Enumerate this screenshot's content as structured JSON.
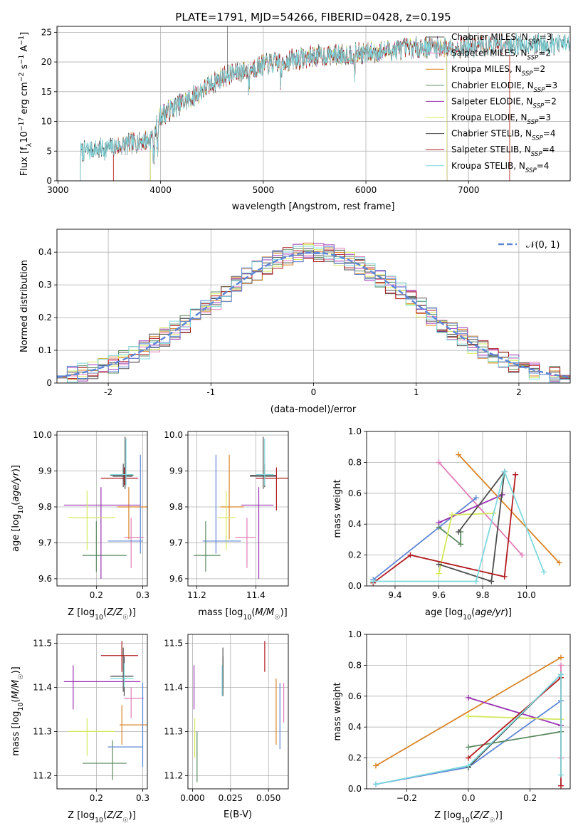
{
  "title": "PLATE=1791, MJD=54266, FIBERID=0428, z=0.195",
  "colors": {
    "Chabrier MILES": "#555555",
    "Salpeter MILES": "#e07fb6",
    "Kroupa MILES": "#d98426",
    "Chabrier ELODIE": "#5c8a60",
    "Salpeter ELODIE": "#9a34b0",
    "Kroupa ELODIE": "#d4e85a",
    "Chabrier STELIB": "#4d4d4d",
    "Salpeter STELIB": "#b01b20",
    "Kroupa STELIB": "#7fd8dd",
    "blue": "#5f86d4",
    "grid": "#b0b0b0"
  },
  "chart_data": [
    {
      "id": "spectrum",
      "type": "line",
      "xlabel": "wavelength [Angstrom, rest frame]",
      "ylabel": "Flux [f_λ 10^-17 erg cm^-2 s^-1 A^-1]",
      "xlim": [
        2990,
        7990
      ],
      "ylim": [
        0,
        26
      ],
      "xticks": [
        3000,
        4000,
        5000,
        6000,
        7000
      ],
      "yticks": [
        0,
        5,
        10,
        15,
        20,
        25
      ],
      "legend_position": "top-right",
      "series": [
        {
          "name": "Chabrier MILES",
          "label": "Chabrier MILES, N_SSP=3",
          "start": 3220,
          "end": 7990
        },
        {
          "name": "Salpeter MILES",
          "label": "Salpeter MILES, N_SSP=2",
          "start": 3540,
          "end": 7400
        },
        {
          "name": "Kroupa MILES",
          "label": "Kroupa MILES, N_SSP=2",
          "start": 3540,
          "end": 7400
        },
        {
          "name": "Chabrier ELODIE",
          "label": "Chabrier ELODIE, N_SSP=3",
          "start": 3900,
          "end": 6790
        },
        {
          "name": "Salpeter ELODIE",
          "label": "Salpeter ELODIE, N_SSP=2",
          "start": 3900,
          "end": 6790
        },
        {
          "name": "Kroupa ELODIE",
          "label": "Kroupa ELODIE, N_SSP=3",
          "start": 3900,
          "end": 6790
        },
        {
          "name": "Chabrier STELIB",
          "label": "Chabrier STELIB, N_SSP=4",
          "start": 3220,
          "end": 7990
        },
        {
          "name": "Salpeter STELIB",
          "label": "Salpeter STELIB, N_SSP=4",
          "start": 3540,
          "end": 7400
        },
        {
          "name": "Kroupa STELIB",
          "label": "Kroupa STELIB, N_SSP=4",
          "start": 3220,
          "end": 7990
        }
      ],
      "continuum": {
        "x": [
          3220,
          3500,
          3900,
          4000,
          4300,
          4600,
          5000,
          5500,
          6000,
          6500,
          7000,
          7500,
          7990
        ],
        "y": [
          5,
          5.5,
          7,
          11,
          14,
          17.5,
          19.5,
          21,
          21.5,
          22.5,
          22.5,
          23,
          23
        ]
      }
    },
    {
      "id": "residuals",
      "type": "bar",
      "xlabel": "(data-model)/error",
      "ylabel": "Normed distribution",
      "xlim": [
        -2.5,
        2.5
      ],
      "ylim": [
        0,
        0.47
      ],
      "xticks": [
        -2,
        -1,
        0,
        1,
        2
      ],
      "yticks": [
        0.0,
        0.1,
        0.2,
        0.3,
        0.4
      ],
      "reference": {
        "name": "N(0,1)",
        "label": "𝒩(0, 1)",
        "mean": 0,
        "sigma": 1
      },
      "bin_width": 0.1,
      "series_names": [
        "Chabrier MILES",
        "Salpeter MILES",
        "Kroupa MILES",
        "Chabrier ELODIE",
        "Salpeter ELODIE",
        "Kroupa ELODIE",
        "Chabrier STELIB",
        "Salpeter STELIB",
        "Kroupa STELIB",
        "blue"
      ]
    },
    {
      "id": "age_vs_Z",
      "type": "scatter",
      "xlabel": "Z [log10(Z/Z☉)]",
      "ylabel": "age [log10(age/yr)]",
      "xlim": [
        0.115,
        0.31
      ],
      "ylim": [
        9.58,
        10.01
      ],
      "xticks": [
        0.2,
        0.3
      ],
      "xticklabels": [
        "0.2",
        "0.3"
      ],
      "yticks": [
        9.6,
        9.7,
        9.8,
        9.9,
        10.0
      ],
      "yticklabels": [
        "9.6",
        "9.7",
        "9.8",
        "9.9",
        "10.0"
      ],
      "points": [
        {
          "series": "Chabrier MILES",
          "x": 0.258,
          "y": 9.885,
          "xerr": [
            0.235,
            0.278
          ],
          "yerr": [
            9.855,
            9.92
          ]
        },
        {
          "series": "Salpeter MILES",
          "x": 0.275,
          "y": 9.715,
          "xerr": [
            0.26,
            0.302
          ],
          "yerr": [
            9.63,
            9.77
          ]
        },
        {
          "series": "Kroupa MILES",
          "x": 0.27,
          "y": 9.8,
          "xerr": [
            0.245,
            0.31
          ],
          "yerr": [
            9.71,
            9.855
          ]
        },
        {
          "series": "Chabrier ELODIE",
          "x": 0.2,
          "y": 9.665,
          "xerr": [
            0.17,
            0.265
          ],
          "yerr": [
            9.62,
            9.76
          ]
        },
        {
          "series": "Salpeter ELODIE",
          "x": 0.21,
          "y": 9.805,
          "xerr": [
            0.13,
            0.295
          ],
          "yerr": [
            9.6,
            9.855
          ]
        },
        {
          "series": "Kroupa ELODIE",
          "x": 0.18,
          "y": 9.77,
          "xerr": [
            0.14,
            0.24
          ],
          "yerr": [
            9.68,
            9.845
          ]
        },
        {
          "series": "Chabrier STELIB",
          "x": 0.262,
          "y": 9.888,
          "xerr": [
            0.23,
            0.28
          ],
          "yerr": [
            9.85,
            9.995
          ]
        },
        {
          "series": "Salpeter STELIB",
          "x": 0.26,
          "y": 9.88,
          "xerr": [
            0.21,
            0.29
          ],
          "yerr": [
            9.86,
            9.91
          ]
        },
        {
          "series": "Kroupa STELIB",
          "x": 0.264,
          "y": 9.89,
          "xerr": [
            0.23,
            0.28
          ],
          "yerr": [
            9.86,
            9.99
          ]
        },
        {
          "series": "blue",
          "x": 0.295,
          "y": 9.705,
          "xerr": [
            0.225,
            0.3
          ],
          "yerr": [
            9.67,
            9.945
          ]
        }
      ]
    },
    {
      "id": "age_vs_mass",
      "type": "scatter",
      "xlabel": "mass [log10(M/M☉)]",
      "ylabel": "",
      "xlim": [
        11.17,
        11.51
      ],
      "ylim": [
        9.58,
        10.01
      ],
      "xticks": [
        11.2,
        11.4
      ],
      "xticklabels": [
        "11.2",
        "11.4"
      ],
      "yticks": [
        9.6,
        9.7,
        9.8,
        9.9,
        10.0
      ],
      "yticklabels": [
        "9.6",
        "9.7",
        "9.8",
        "9.9",
        "10.0"
      ],
      "points": [
        {
          "series": "Chabrier MILES",
          "x": 11.43,
          "y": 9.885,
          "xerr": [
            11.38,
            11.47
          ],
          "yerr": [
            9.855,
            9.92
          ]
        },
        {
          "series": "Salpeter MILES",
          "x": 11.37,
          "y": 9.715,
          "xerr": [
            11.33,
            11.4
          ],
          "yerr": [
            9.63,
            9.77
          ]
        },
        {
          "series": "Kroupa MILES",
          "x": 11.31,
          "y": 9.8,
          "xerr": [
            11.28,
            11.36
          ],
          "yerr": [
            9.71,
            9.945
          ]
        },
        {
          "series": "Chabrier ELODIE",
          "x": 11.23,
          "y": 9.665,
          "xerr": [
            11.19,
            11.28
          ],
          "yerr": [
            9.62,
            9.76
          ]
        },
        {
          "series": "Salpeter ELODIE",
          "x": 11.41,
          "y": 9.805,
          "xerr": [
            11.35,
            11.46
          ],
          "yerr": [
            9.6,
            9.855
          ]
        },
        {
          "series": "Kroupa ELODIE",
          "x": 11.3,
          "y": 9.77,
          "xerr": [
            11.27,
            11.33
          ],
          "yerr": [
            9.68,
            9.845
          ]
        },
        {
          "series": "Chabrier STELIB",
          "x": 11.425,
          "y": 9.888,
          "xerr": [
            11.38,
            11.47
          ],
          "yerr": [
            9.85,
            9.995
          ]
        },
        {
          "series": "Salpeter STELIB",
          "x": 11.47,
          "y": 9.88,
          "xerr": [
            11.4,
            11.51
          ],
          "yerr": [
            9.79,
            9.91
          ]
        },
        {
          "series": "Kroupa STELIB",
          "x": 11.43,
          "y": 9.89,
          "xerr": [
            11.4,
            11.46
          ],
          "yerr": [
            9.86,
            9.99
          ]
        },
        {
          "series": "blue",
          "x": 11.265,
          "y": 9.705,
          "xerr": [
            11.22,
            11.35
          ],
          "yerr": [
            9.67,
            9.945
          ]
        }
      ]
    },
    {
      "id": "mass_weight_vs_age",
      "type": "line",
      "xlabel": "age [log10(age/yr)]",
      "ylabel": "mass weight",
      "xlim": [
        9.27,
        10.2
      ],
      "ylim": [
        0,
        1
      ],
      "xticks": [
        9.4,
        9.6,
        9.8,
        10.0
      ],
      "xticklabels": [
        "9.4",
        "9.6",
        "9.8",
        "10.0"
      ],
      "yticks": [
        0.0,
        0.2,
        0.4,
        0.6,
        0.8,
        1.0
      ],
      "yticklabels": [
        "0.0",
        "0.2",
        "0.4",
        "0.6",
        "0.8",
        "1.0"
      ],
      "series": [
        {
          "name": "Salpeter MILES",
          "x": [
            9.6,
            9.98
          ],
          "y": [
            0.8,
            0.2
          ]
        },
        {
          "name": "Kroupa MILES",
          "x": [
            9.69,
            10.15
          ],
          "y": [
            0.85,
            0.15
          ]
        },
        {
          "name": "blue",
          "x": [
            9.3,
            9.77
          ],
          "y": [
            0.04,
            0.57
          ]
        },
        {
          "name": "Chabrier ELODIE",
          "x": [
            9.6,
            9.7,
            9.7
          ],
          "y": [
            0.38,
            0.27,
            0.35
          ]
        },
        {
          "name": "Salpeter ELODIE",
          "x": [
            9.6,
            9.89
          ],
          "y": [
            0.41,
            0.59
          ]
        },
        {
          "name": "Kroupa ELODIE",
          "x": [
            9.6,
            9.66,
            9.85
          ],
          "y": [
            0.08,
            0.46,
            0.47
          ]
        },
        {
          "name": "Chabrier STELIB",
          "x": [
            9.6,
            9.84,
            9.9,
            9.69
          ],
          "y": [
            0.14,
            0.03,
            0.74,
            0.35
          ]
        },
        {
          "name": "Salpeter STELIB",
          "x": [
            9.3,
            9.47,
            9.9,
            9.95
          ],
          "y": [
            0.02,
            0.2,
            0.06,
            0.72
          ]
        },
        {
          "name": "Kroupa STELIB",
          "x": [
            9.3,
            9.77,
            9.9,
            10.08
          ],
          "y": [
            0.03,
            0.03,
            0.74,
            0.09
          ]
        }
      ]
    },
    {
      "id": "mass_vs_Z",
      "type": "scatter",
      "xlabel": "Z [log10(Z/Z☉)]",
      "ylabel": "mass [log10(M/M☉)]",
      "xlim": [
        0.115,
        0.31
      ],
      "ylim": [
        11.17,
        11.52
      ],
      "xticks": [
        0.2,
        0.3
      ],
      "xticklabels": [
        "0.2",
        "0.3"
      ],
      "yticks": [
        11.2,
        11.3,
        11.4,
        11.5
      ],
      "yticklabels": [
        "11.2",
        "11.3",
        "11.4",
        "11.5"
      ],
      "points": [
        {
          "series": "Chabrier MILES",
          "x": 0.258,
          "y": 11.425,
          "xerr": [
            0.235,
            0.278
          ],
          "yerr": [
            11.39,
            11.49
          ]
        },
        {
          "series": "Salpeter MILES",
          "x": 0.275,
          "y": 11.375,
          "xerr": [
            0.26,
            0.302
          ],
          "yerr": [
            11.33,
            11.4
          ]
        },
        {
          "series": "Kroupa MILES",
          "x": 0.255,
          "y": 11.315,
          "xerr": [
            0.25,
            0.31
          ],
          "yerr": [
            11.27,
            11.36
          ]
        },
        {
          "series": "Chabrier ELODIE",
          "x": 0.235,
          "y": 11.228,
          "xerr": [
            0.17,
            0.265
          ],
          "yerr": [
            11.19,
            11.28
          ]
        },
        {
          "series": "Salpeter ELODIE",
          "x": 0.15,
          "y": 11.413,
          "xerr": [
            0.13,
            0.295
          ],
          "yerr": [
            11.35,
            11.45
          ]
        },
        {
          "series": "Kroupa ELODIE",
          "x": 0.18,
          "y": 11.3,
          "xerr": [
            0.14,
            0.24
          ],
          "yerr": [
            11.245,
            11.33
          ]
        },
        {
          "series": "Chabrier STELIB",
          "x": 0.26,
          "y": 11.425,
          "xerr": [
            0.23,
            0.28
          ],
          "yerr": [
            11.38,
            11.47
          ]
        },
        {
          "series": "Salpeter STELIB",
          "x": 0.255,
          "y": 11.472,
          "xerr": [
            0.21,
            0.29
          ],
          "yerr": [
            11.435,
            11.505
          ]
        },
        {
          "series": "Kroupa STELIB",
          "x": 0.26,
          "y": 11.42,
          "xerr": [
            0.23,
            0.28
          ],
          "yerr": [
            11.4,
            11.455
          ]
        },
        {
          "series": "blue",
          "x": 0.3,
          "y": 11.265,
          "xerr": [
            0.225,
            0.3
          ],
          "yerr": [
            11.22,
            11.41
          ]
        }
      ]
    },
    {
      "id": "mass_vs_ebv",
      "type": "scatter",
      "xlabel": "E(B-V)",
      "ylabel": "",
      "xlim": [
        -0.003,
        0.063
      ],
      "ylim": [
        11.17,
        11.52
      ],
      "xticks": [
        0.0,
        0.025,
        0.05
      ],
      "xticklabels": [
        "0.000",
        "0.025",
        "0.050"
      ],
      "yticks": [
        11.2,
        11.3,
        11.4,
        11.5
      ],
      "yticklabels": [
        "11.2",
        "11.3",
        "11.4",
        "11.5"
      ],
      "points": [
        {
          "series": "Chabrier MILES",
          "x": 0.02,
          "y": 11.425,
          "yerr": [
            11.4,
            11.49
          ]
        },
        {
          "series": "Salpeter MILES",
          "x": 0.06,
          "y": 11.375,
          "yerr": [
            11.32,
            11.41
          ]
        },
        {
          "series": "Kroupa MILES",
          "x": 0.055,
          "y": 11.32,
          "yerr": [
            11.27,
            11.42
          ]
        },
        {
          "series": "Chabrier ELODIE",
          "x": 0.003,
          "y": 11.228,
          "yerr": [
            11.185,
            11.3
          ]
        },
        {
          "series": "Salpeter ELODIE",
          "x": 0.001,
          "y": 11.413,
          "yerr": [
            11.35,
            11.45
          ]
        },
        {
          "series": "Kroupa ELODIE",
          "x": 0.0015,
          "y": 11.3,
          "yerr": [
            11.24,
            11.33
          ]
        },
        {
          "series": "Chabrier STELIB",
          "x": 0.02,
          "y": 11.425,
          "yerr": [
            11.38,
            11.47
          ]
        },
        {
          "series": "Salpeter STELIB",
          "x": 0.0475,
          "y": 11.472,
          "yerr": [
            11.435,
            11.505
          ]
        },
        {
          "series": "Kroupa STELIB",
          "x": 0.0195,
          "y": 11.42,
          "yerr": [
            11.38,
            11.45
          ]
        },
        {
          "series": "blue",
          "x": 0.0575,
          "y": 11.265,
          "yerr": [
            11.26,
            11.41
          ]
        }
      ]
    },
    {
      "id": "mass_weight_vs_Z",
      "type": "line",
      "xlabel": "Z [log10(Z/Z☉)]",
      "ylabel": "mass weight",
      "xlim": [
        -0.33,
        0.33
      ],
      "ylim": [
        0,
        1
      ],
      "xticks": [
        -0.2,
        0.0,
        0.2
      ],
      "xticklabels": [
        "−0.2",
        "0.0",
        "0.2"
      ],
      "yticks": [
        0.0,
        0.2,
        0.4,
        0.6,
        0.8,
        1.0
      ],
      "yticklabels": [
        "0.0",
        "0.2",
        "0.4",
        "0.6",
        "0.8",
        "1.0"
      ],
      "series": [
        {
          "name": "Kroupa MILES",
          "x": [
            -0.3,
            0.3
          ],
          "y": [
            0.15,
            0.85
          ]
        },
        {
          "name": "Salpeter MILES",
          "x": [
            0.3,
            0.3
          ],
          "y": [
            0.8,
            0.2
          ]
        },
        {
          "name": "blue",
          "x": [
            -0.3,
            0.0,
            0.3
          ],
          "y": [
            0.03,
            0.14,
            0.57
          ]
        },
        {
          "name": "Chabrier ELODIE",
          "x": [
            0.0,
            0.3
          ],
          "y": [
            0.27,
            0.37
          ]
        },
        {
          "name": "Salpeter ELODIE",
          "x": [
            0.0,
            0.3
          ],
          "y": [
            0.59,
            0.41
          ]
        },
        {
          "name": "Kroupa ELODIE",
          "x": [
            0.0,
            0.3
          ],
          "y": [
            0.47,
            0.45
          ]
        },
        {
          "name": "Chabrier STELIB",
          "x": [
            0.0,
            0.3
          ],
          "y": [
            0.14,
            0.74
          ]
        },
        {
          "name": "Salpeter STELIB",
          "x": [
            0.0,
            0.3,
            0.3
          ],
          "y": [
            0.2,
            0.72,
            0.02
          ]
        },
        {
          "name": "Kroupa STELIB",
          "x": [
            -0.3,
            0.0,
            0.3,
            0.3
          ],
          "y": [
            0.03,
            0.15,
            0.74,
            0.09
          ]
        }
      ]
    }
  ]
}
